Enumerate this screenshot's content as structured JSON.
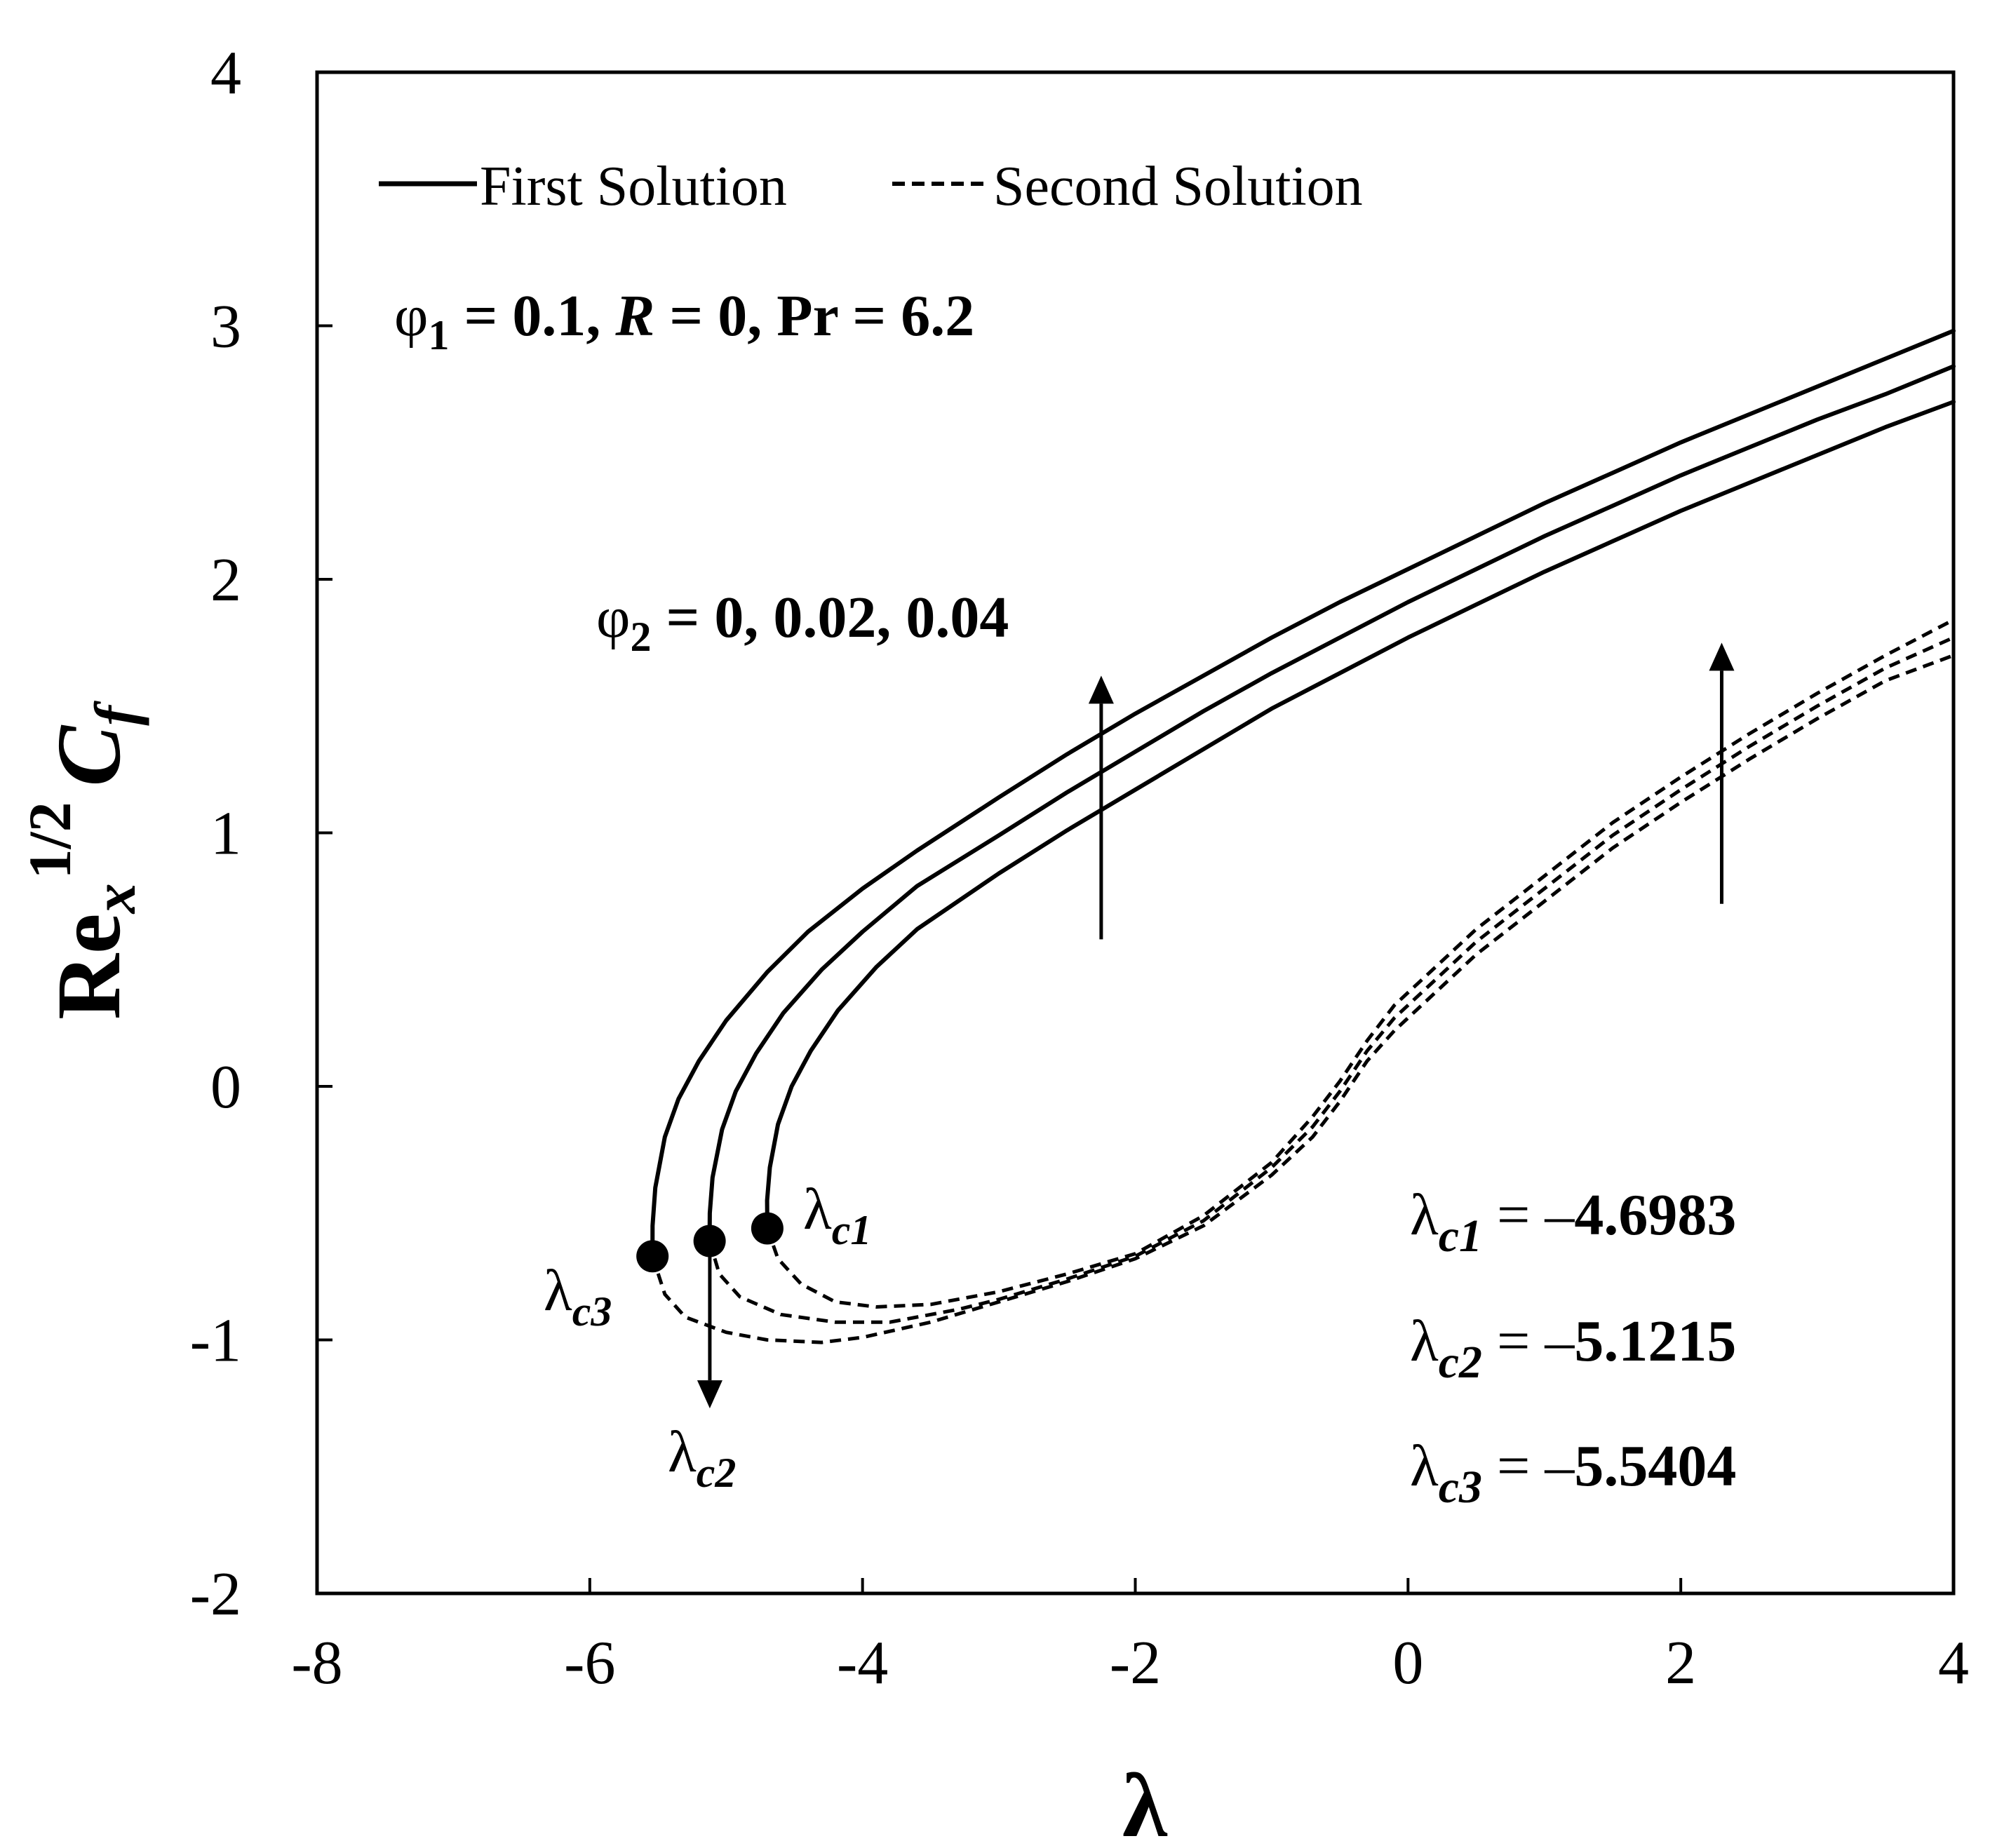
{
  "chart_data": {
    "type": "line",
    "xlabel": "λ",
    "ylabel": {
      "base": "Re",
      "sub": "x",
      "sup": "1/2",
      "cf": "C",
      "cf_sub": "f"
    },
    "xlim": [
      -8,
      4
    ],
    "ylim": [
      -2,
      4
    ],
    "x_ticks": [
      "-8",
      "-6",
      "-4",
      "-2",
      "0",
      "2",
      "4"
    ],
    "y_ticks": [
      "-2",
      "-1",
      "0",
      "1",
      "2",
      "3",
      "4"
    ],
    "grid": false,
    "legend": {
      "placement": "top-left",
      "entries": [
        {
          "label": "First Solution",
          "style": "solid"
        },
        {
          "label": "Second Solution",
          "style": "dashed"
        }
      ]
    },
    "series": [
      {
        "style": "solid",
        "points": [
          [
            -5.5404,
            -0.67
          ],
          [
            -5.54,
            -0.55
          ],
          [
            -5.52,
            -0.4
          ],
          [
            -5.45,
            -0.2
          ],
          [
            -5.35,
            -0.05
          ],
          [
            -5.2,
            0.1
          ],
          [
            -5.0,
            0.26
          ],
          [
            -4.7,
            0.45
          ],
          [
            -4.4,
            0.61
          ],
          [
            -4.0,
            0.78
          ],
          [
            -3.6,
            0.93
          ],
          [
            -3.0,
            1.14
          ],
          [
            -2.5,
            1.31
          ],
          [
            -2.0,
            1.47
          ],
          [
            -1.5,
            1.62
          ],
          [
            -1.0,
            1.77
          ],
          [
            -0.5,
            1.91
          ],
          [
            0.0,
            2.04
          ],
          [
            0.5,
            2.17
          ],
          [
            1.0,
            2.3
          ],
          [
            1.5,
            2.42
          ],
          [
            2.0,
            2.54
          ],
          [
            2.5,
            2.65
          ],
          [
            3.0,
            2.76
          ],
          [
            3.5,
            2.87
          ],
          [
            4.0,
            2.98
          ]
        ]
      },
      {
        "style": "solid",
        "points": [
          [
            -5.1215,
            -0.61
          ],
          [
            -5.12,
            -0.5
          ],
          [
            -5.1,
            -0.36
          ],
          [
            -5.03,
            -0.17
          ],
          [
            -4.93,
            -0.02
          ],
          [
            -4.78,
            0.13
          ],
          [
            -4.58,
            0.29
          ],
          [
            -4.3,
            0.46
          ],
          [
            -4.0,
            0.61
          ],
          [
            -3.6,
            0.79
          ],
          [
            -3.0,
            0.99
          ],
          [
            -2.5,
            1.16
          ],
          [
            -2.0,
            1.32
          ],
          [
            -1.5,
            1.48
          ],
          [
            -1.0,
            1.63
          ],
          [
            -0.5,
            1.77
          ],
          [
            0.0,
            1.91
          ],
          [
            0.5,
            2.04
          ],
          [
            1.0,
            2.17
          ],
          [
            1.5,
            2.29
          ],
          [
            2.0,
            2.41
          ],
          [
            2.5,
            2.52
          ],
          [
            3.0,
            2.63
          ],
          [
            3.5,
            2.73
          ],
          [
            4.0,
            2.84
          ]
        ]
      },
      {
        "style": "solid",
        "points": [
          [
            -4.6983,
            -0.56
          ],
          [
            -4.7,
            -0.45
          ],
          [
            -4.68,
            -0.32
          ],
          [
            -4.62,
            -0.15
          ],
          [
            -4.52,
            0.0
          ],
          [
            -4.38,
            0.14
          ],
          [
            -4.18,
            0.3
          ],
          [
            -3.9,
            0.47
          ],
          [
            -3.6,
            0.62
          ],
          [
            -3.0,
            0.84
          ],
          [
            -2.5,
            1.01
          ],
          [
            -2.0,
            1.17
          ],
          [
            -1.5,
            1.33
          ],
          [
            -1.0,
            1.49
          ],
          [
            -0.5,
            1.63
          ],
          [
            0.0,
            1.77
          ],
          [
            0.5,
            1.9
          ],
          [
            1.0,
            2.03
          ],
          [
            1.5,
            2.15
          ],
          [
            2.0,
            2.27
          ],
          [
            2.5,
            2.38
          ],
          [
            3.0,
            2.49
          ],
          [
            3.5,
            2.6
          ],
          [
            4.0,
            2.7
          ]
        ]
      },
      {
        "style": "dashed",
        "points": [
          [
            -5.5404,
            -0.67
          ],
          [
            -5.45,
            -0.82
          ],
          [
            -5.3,
            -0.91
          ],
          [
            -5.0,
            -0.97
          ],
          [
            -4.7,
            -1.0
          ],
          [
            -4.3,
            -1.01
          ],
          [
            -4.0,
            -0.99
          ],
          [
            -3.5,
            -0.93
          ],
          [
            -3.0,
            -0.85
          ],
          [
            -2.5,
            -0.77
          ],
          [
            -2.0,
            -0.68
          ],
          [
            -1.5,
            -0.55
          ],
          [
            -1.0,
            -0.35
          ],
          [
            -0.7,
            -0.2
          ],
          [
            -0.5,
            -0.06
          ],
          [
            -0.3,
            0.1
          ],
          [
            -0.1,
            0.22
          ],
          [
            0.1,
            0.32
          ],
          [
            0.5,
            0.52
          ],
          [
            1.0,
            0.73
          ],
          [
            1.5,
            0.94
          ],
          [
            2.0,
            1.12
          ],
          [
            2.5,
            1.29
          ],
          [
            3.0,
            1.45
          ],
          [
            3.5,
            1.6
          ],
          [
            4.0,
            1.7
          ]
        ]
      },
      {
        "style": "dashed",
        "points": [
          [
            -5.1215,
            -0.61
          ],
          [
            -5.05,
            -0.74
          ],
          [
            -4.9,
            -0.83
          ],
          [
            -4.6,
            -0.9
          ],
          [
            -4.2,
            -0.93
          ],
          [
            -3.8,
            -0.93
          ],
          [
            -3.3,
            -0.88
          ],
          [
            -3.0,
            -0.84
          ],
          [
            -2.5,
            -0.76
          ],
          [
            -2.0,
            -0.67
          ],
          [
            -1.5,
            -0.53
          ],
          [
            -1.0,
            -0.32
          ],
          [
            -0.7,
            -0.16
          ],
          [
            -0.5,
            -0.02
          ],
          [
            -0.3,
            0.14
          ],
          [
            -0.1,
            0.27
          ],
          [
            0.1,
            0.37
          ],
          [
            0.5,
            0.57
          ],
          [
            1.0,
            0.78
          ],
          [
            1.5,
            0.99
          ],
          [
            2.0,
            1.17
          ],
          [
            2.5,
            1.34
          ],
          [
            3.0,
            1.5
          ],
          [
            3.5,
            1.65
          ],
          [
            4.0,
            1.77
          ]
        ]
      },
      {
        "style": "dashed",
        "points": [
          [
            -4.6983,
            -0.56
          ],
          [
            -4.62,
            -0.68
          ],
          [
            -4.45,
            -0.78
          ],
          [
            -4.2,
            -0.85
          ],
          [
            -3.9,
            -0.87
          ],
          [
            -3.5,
            -0.86
          ],
          [
            -3.0,
            -0.81
          ],
          [
            -2.5,
            -0.74
          ],
          [
            -2.0,
            -0.66
          ],
          [
            -1.5,
            -0.51
          ],
          [
            -1.0,
            -0.3
          ],
          [
            -0.7,
            -0.12
          ],
          [
            -0.5,
            0.02
          ],
          [
            -0.3,
            0.18
          ],
          [
            -0.1,
            0.32
          ],
          [
            0.1,
            0.42
          ],
          [
            0.5,
            0.62
          ],
          [
            1.0,
            0.83
          ],
          [
            1.5,
            1.04
          ],
          [
            2.0,
            1.22
          ],
          [
            2.5,
            1.39
          ],
          [
            3.0,
            1.55
          ],
          [
            3.5,
            1.7
          ],
          [
            4.0,
            1.84
          ]
        ]
      }
    ],
    "critical_points": [
      {
        "x": -4.6983,
        "y": -0.56,
        "label": "λ",
        "sub": "c1"
      },
      {
        "x": -5.1215,
        "y": -0.61,
        "label": "λ",
        "sub": "c2"
      },
      {
        "x": -5.5404,
        "y": -0.67,
        "label": "λ",
        "sub": "c3"
      }
    ],
    "annotations": {
      "params": {
        "phi1": "φ",
        "phi1_sub": "1",
        "phi1_val": " = 0.1, ",
        "R": "R",
        "R_val": " = 0, ",
        "Pr": "Pr",
        "Pr_val": " = 6.2"
      },
      "phi2": {
        "phi": "φ",
        "sub": "2",
        "vals": " = 0, 0.02, 0.04"
      },
      "arrows": [
        {
          "from": [
            -2.25,
            0.58
          ],
          "to": [
            -2.25,
            1.62
          ],
          "direction": "up"
        },
        {
          "from": [
            2.3,
            0.72
          ],
          "to": [
            2.3,
            1.75
          ],
          "direction": "up"
        },
        {
          "from": [
            -5.12,
            -0.62
          ],
          "to": [
            -5.12,
            -1.27
          ],
          "direction": "down"
        }
      ],
      "critical_values": [
        {
          "sym": "λ",
          "sub": "c1",
          "eq": " = –",
          "val": "4.6983"
        },
        {
          "sym": "λ",
          "sub": "c2",
          "eq": " = –",
          "val": "5.1215"
        },
        {
          "sym": "λ",
          "sub": "c3",
          "eq": " = –",
          "val": "5.5404"
        }
      ]
    }
  }
}
